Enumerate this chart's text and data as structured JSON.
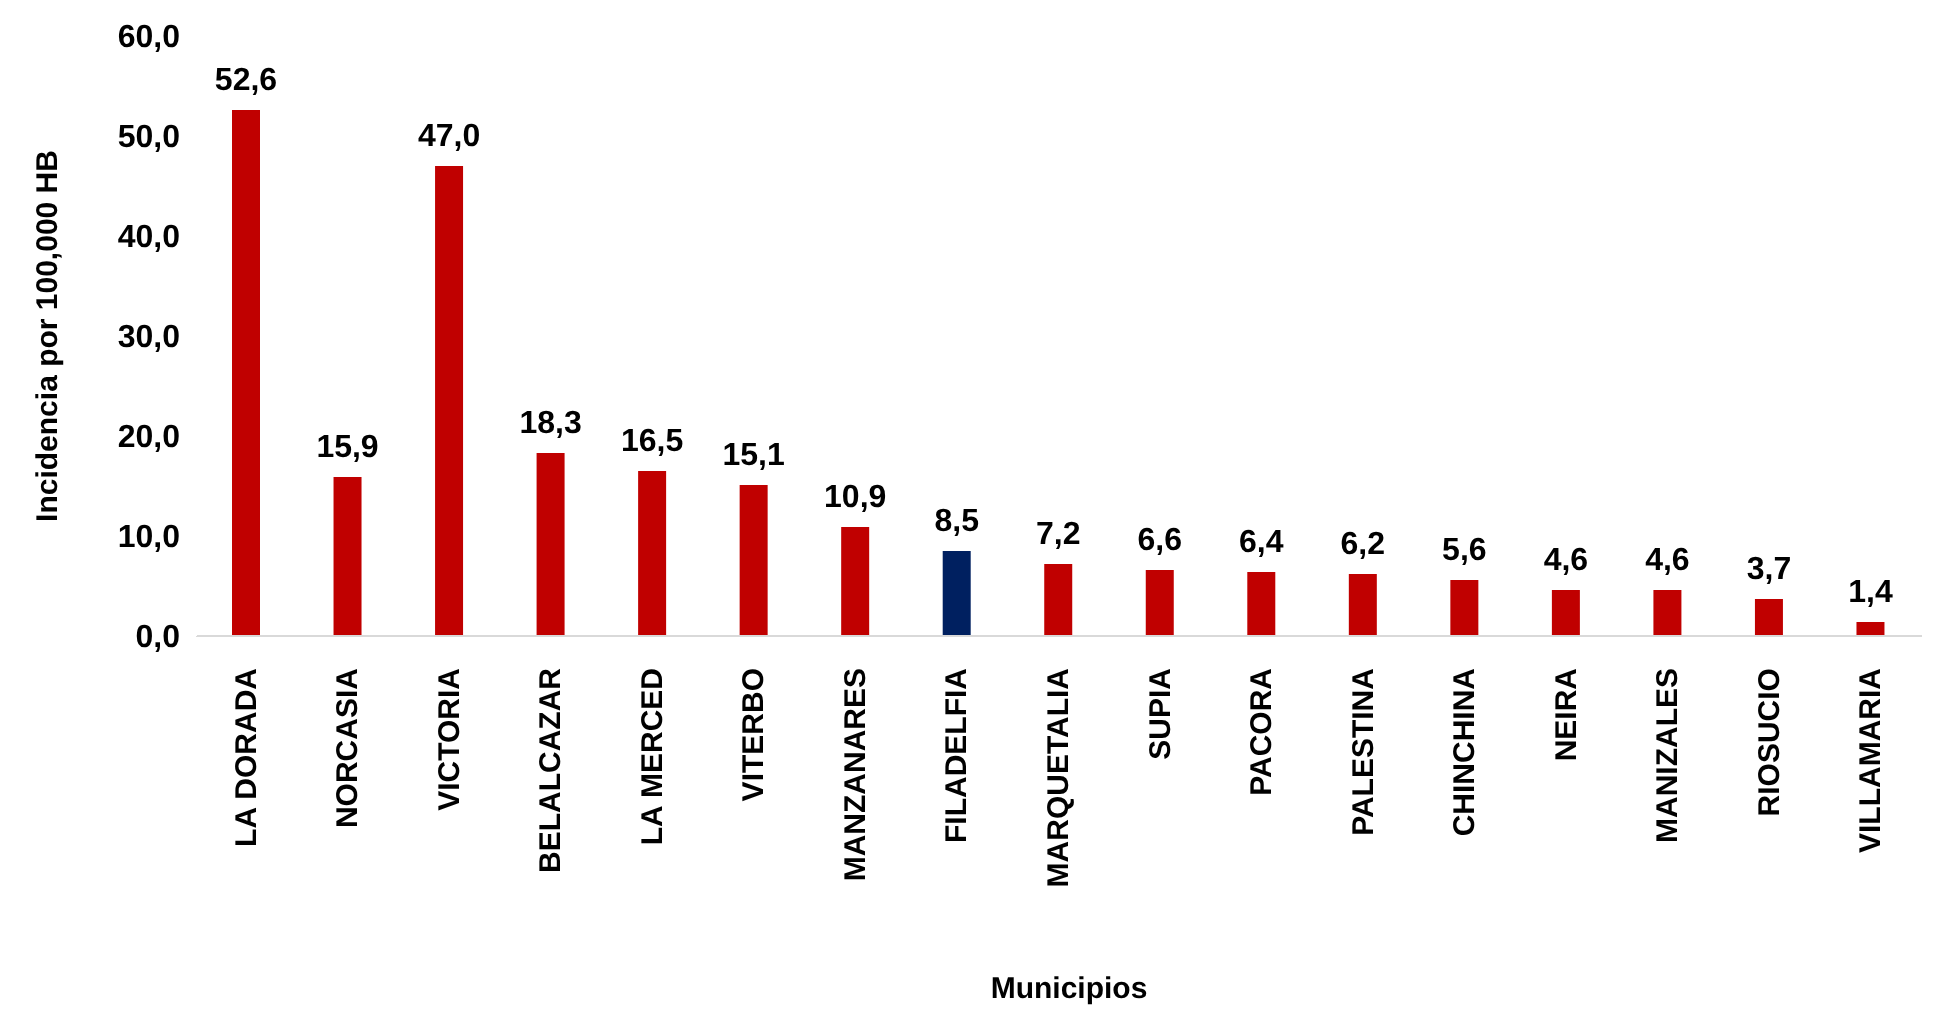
{
  "chart_data": {
    "type": "bar",
    "xlabel": "Municipios",
    "ylabel": "Incidencia por 100,000 HB",
    "categories": [
      "LA DORADA",
      "NORCASIA",
      "VICTORIA",
      "BELALCAZAR",
      "LA MERCED",
      "VITERBO",
      "MANZANARES",
      "FILADELFIA",
      "MARQUETALIA",
      "SUPIA",
      "PACORA",
      "PALESTINA",
      "CHINCHINA",
      "NEIRA",
      "MANIZALES",
      "RIOSUCIO",
      "VILLAMARIA"
    ],
    "values": [
      52.6,
      15.9,
      47.0,
      18.3,
      16.5,
      15.1,
      10.9,
      8.5,
      7.2,
      6.6,
      6.4,
      6.2,
      5.6,
      4.6,
      4.6,
      3.7,
      1.4
    ],
    "colors": [
      "#c00000",
      "#c00000",
      "#c00000",
      "#c00000",
      "#c00000",
      "#c00000",
      "#c00000",
      "#002060",
      "#c00000",
      "#c00000",
      "#c00000",
      "#c00000",
      "#c00000",
      "#c00000",
      "#c00000",
      "#c00000",
      "#c00000"
    ],
    "value_labels": [
      "52,6",
      "15,9",
      "47,0",
      "18,3",
      "16,5",
      "15,1",
      "10,9",
      "8,5",
      "7,2",
      "6,6",
      "6,4",
      "6,2",
      "5,6",
      "4,6",
      "4,6",
      "3,7",
      "1,4"
    ],
    "ylim": [
      0,
      60
    ],
    "yticks": [
      {
        "value": 0,
        "label": "0,0"
      },
      {
        "value": 10,
        "label": "10,0"
      },
      {
        "value": 20,
        "label": "20,0"
      },
      {
        "value": 30,
        "label": "30,0"
      },
      {
        "value": 40,
        "label": "40,0"
      },
      {
        "value": 50,
        "label": "50,0"
      },
      {
        "value": 60,
        "label": "60,0"
      }
    ],
    "grid": false,
    "legend": false
  }
}
